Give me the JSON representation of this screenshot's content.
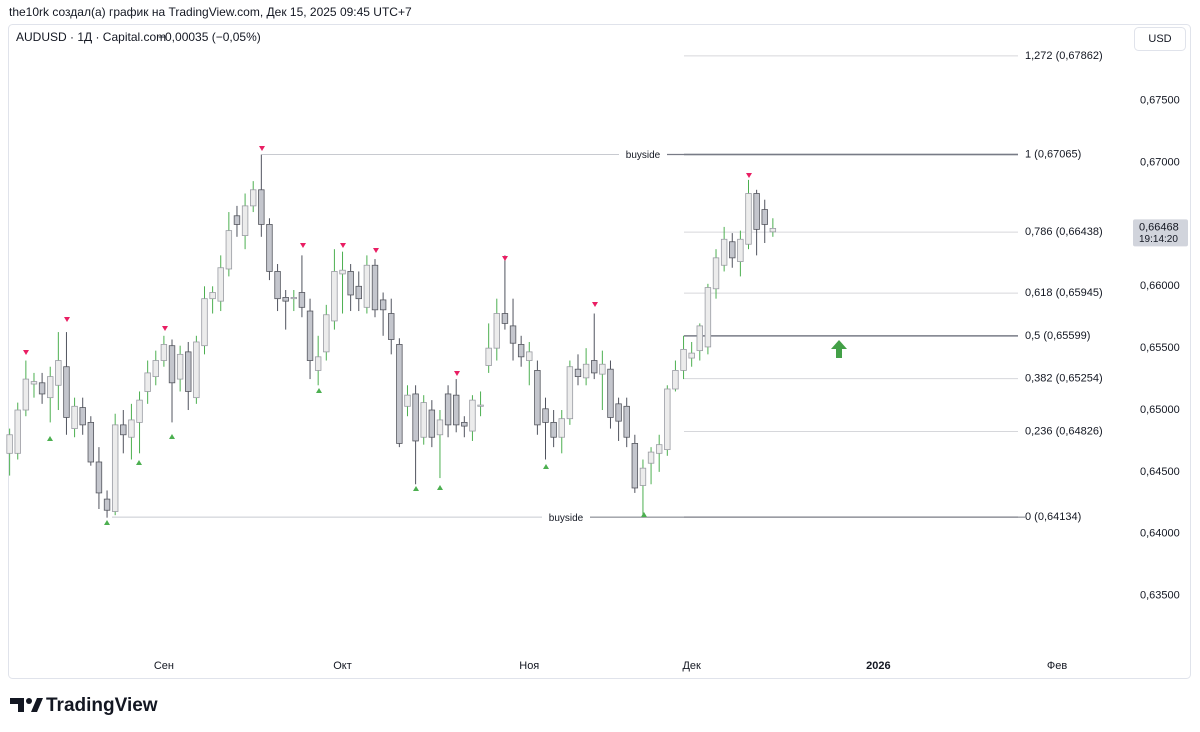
{
  "header": {
    "attribution": "the10rk создал(а) график на TradingView.com, Дек 15, 2025 09:45 UTC+7"
  },
  "footer": {
    "brand": "TradingView"
  },
  "chart_data": {
    "type": "candlestick",
    "title": "AUDUSD · 1Д · Capital.com",
    "change": "−0,00035 (−0,05%)",
    "currency": "USD",
    "last_price": {
      "value": 0.66468,
      "label": "0,66468"
    },
    "countdown": "19:14:20",
    "colors": {
      "up_body": "#ececec",
      "up_border": "#9a9ca3",
      "up_wick": "#4caf50",
      "down_body": "#c4c6cd",
      "down_border": "#55575f",
      "down_wick": "#50535e"
    },
    "x": [
      0,
      1,
      2,
      3,
      4,
      5,
      6,
      7,
      8,
      9,
      10,
      11,
      12,
      13,
      14,
      15,
      16,
      17,
      18,
      19,
      20,
      21,
      22,
      23,
      24,
      25,
      26,
      27,
      28,
      29,
      30,
      31,
      32,
      33,
      34,
      35,
      36,
      37,
      38,
      39,
      40,
      41,
      42,
      43,
      44,
      45,
      46,
      47,
      48,
      49,
      50,
      51,
      52,
      53,
      54,
      55,
      56,
      57,
      58,
      59,
      60,
      61,
      62,
      63,
      64,
      65,
      66,
      67,
      68,
      69,
      70,
      71,
      72,
      73,
      74,
      75,
      76,
      77,
      78,
      79,
      80,
      81,
      82,
      83,
      84,
      85,
      86,
      87,
      88,
      89,
      90,
      91,
      92,
      93,
      94
    ],
    "open": [
      0.6465,
      0.6465,
      0.65,
      0.6521,
      0.6522,
      0.651,
      0.652,
      0.6535,
      0.6485,
      0.6502,
      0.649,
      0.6458,
      0.6428,
      0.6418,
      0.6488,
      0.6478,
      0.649,
      0.6515,
      0.6527,
      0.654,
      0.6552,
      0.6525,
      0.6547,
      0.651,
      0.6552,
      0.659,
      0.6588,
      0.6614,
      0.6657,
      0.6641,
      0.6665,
      0.6678,
      0.665,
      0.6612,
      0.6591,
      0.659,
      0.6595,
      0.658,
      0.6532,
      0.6547,
      0.6572,
      0.661,
      0.6612,
      0.66,
      0.6583,
      0.6617,
      0.6589,
      0.6578,
      0.6553,
      0.6503,
      0.6513,
      0.6478,
      0.65,
      0.648,
      0.6513,
      0.6512,
      0.649,
      0.6483,
      0.6503,
      0.6536,
      0.655,
      0.6578,
      0.6568,
      0.6553,
      0.654,
      0.6532,
      0.6501,
      0.649,
      0.6478,
      0.6493,
      0.6533,
      0.6526,
      0.654,
      0.6529,
      0.6533,
      0.6505,
      0.6503,
      0.6473,
      0.6439,
      0.6457,
      0.6465,
      0.6468,
      0.6517,
      0.6532,
      0.6542,
      0.6548,
      0.6551,
      0.6598,
      0.6617,
      0.6636,
      0.662,
      0.6634,
      0.6675,
      0.6662,
      0.6644
    ],
    "high": [
      0.6485,
      0.6506,
      0.654,
      0.653,
      0.653,
      0.6535,
      0.6563,
      0.6563,
      0.651,
      0.651,
      0.6495,
      0.647,
      0.6435,
      0.6497,
      0.65,
      0.6505,
      0.6515,
      0.654,
      0.6548,
      0.656,
      0.6557,
      0.6552,
      0.6555,
      0.656,
      0.66,
      0.66,
      0.6625,
      0.666,
      0.6665,
      0.6675,
      0.6685,
      0.67065,
      0.6655,
      0.6618,
      0.6597,
      0.6597,
      0.6625,
      0.659,
      0.656,
      0.6585,
      0.663,
      0.6628,
      0.6618,
      0.6612,
      0.6625,
      0.6622,
      0.6595,
      0.659,
      0.6558,
      0.652,
      0.652,
      0.6512,
      0.6508,
      0.65,
      0.652,
      0.6525,
      0.6495,
      0.6512,
      0.6515,
      0.657,
      0.659,
      0.6625,
      0.659,
      0.656,
      0.6555,
      0.654,
      0.651,
      0.65,
      0.65,
      0.654,
      0.6545,
      0.655,
      0.6578,
      0.6548,
      0.654,
      0.651,
      0.651,
      0.648,
      0.646,
      0.647,
      0.648,
      0.652,
      0.654,
      0.656,
      0.6555,
      0.657,
      0.6602,
      0.663,
      0.6648,
      0.6643,
      0.6645,
      0.6686,
      0.6678,
      0.667,
      0.6655
    ],
    "low": [
      0.6447,
      0.646,
      0.6495,
      0.651,
      0.6505,
      0.649,
      0.65,
      0.648,
      0.6478,
      0.648,
      0.6455,
      0.642,
      0.6413,
      0.6415,
      0.6465,
      0.646,
      0.6465,
      0.6505,
      0.652,
      0.6535,
      0.649,
      0.6515,
      0.65,
      0.6505,
      0.6545,
      0.6578,
      0.658,
      0.6608,
      0.664,
      0.663,
      0.666,
      0.664,
      0.6605,
      0.658,
      0.6565,
      0.658,
      0.6575,
      0.6525,
      0.652,
      0.654,
      0.6565,
      0.6578,
      0.658,
      0.658,
      0.6578,
      0.6575,
      0.656,
      0.6545,
      0.647,
      0.6495,
      0.644,
      0.6472,
      0.647,
      0.6445,
      0.6478,
      0.6482,
      0.6478,
      0.6475,
      0.6495,
      0.653,
      0.654,
      0.6565,
      0.654,
      0.6535,
      0.652,
      0.648,
      0.646,
      0.647,
      0.6465,
      0.6488,
      0.652,
      0.652,
      0.6525,
      0.65,
      0.6485,
      0.6475,
      0.647,
      0.6433,
      0.64134,
      0.644,
      0.645,
      0.6463,
      0.6515,
      0.6525,
      0.6535,
      0.654,
      0.6545,
      0.659,
      0.6612,
      0.6615,
      0.6608,
      0.663,
      0.6625,
      0.6635,
      0.664
    ],
    "close": [
      0.648,
      0.65,
      0.6525,
      0.6523,
      0.6513,
      0.6527,
      0.654,
      0.6494,
      0.6503,
      0.6488,
      0.6458,
      0.6433,
      0.6419,
      0.6488,
      0.648,
      0.6492,
      0.6508,
      0.653,
      0.654,
      0.6553,
      0.6522,
      0.6545,
      0.6515,
      0.6555,
      0.659,
      0.6595,
      0.6615,
      0.6645,
      0.665,
      0.6665,
      0.6678,
      0.665,
      0.6612,
      0.659,
      0.6588,
      0.6591,
      0.6583,
      0.654,
      0.6543,
      0.6577,
      0.6612,
      0.6613,
      0.6593,
      0.659,
      0.6617,
      0.6581,
      0.6581,
      0.6557,
      0.6473,
      0.6512,
      0.6475,
      0.6506,
      0.6478,
      0.6492,
      0.6488,
      0.6488,
      0.6487,
      0.6508,
      0.6504,
      0.655,
      0.6578,
      0.657,
      0.6554,
      0.6543,
      0.6547,
      0.6488,
      0.649,
      0.6478,
      0.6493,
      0.6535,
      0.6527,
      0.6537,
      0.653,
      0.6537,
      0.6494,
      0.6491,
      0.6478,
      0.6437,
      0.6453,
      0.6466,
      0.6472,
      0.6517,
      0.6532,
      0.6549,
      0.6546,
      0.6568,
      0.6599,
      0.6623,
      0.6638,
      0.6623,
      0.6638,
      0.6675,
      0.6646,
      0.665,
      0.66468
    ],
    "xlim": [
      -0.2,
      137
    ],
    "xticks": [
      {
        "value": 19,
        "label": "Сен"
      },
      {
        "value": 41,
        "label": "Окт"
      },
      {
        "value": 64,
        "label": "Ноя"
      },
      {
        "value": 84,
        "label": "Дек"
      },
      {
        "value": 107,
        "label": "2026",
        "bold": true
      },
      {
        "value": 129,
        "label": "Фев"
      }
    ],
    "ylim": [
      0.6302,
      0.6812
    ],
    "yticks": [
      {
        "value": 0.635,
        "label": "0,63500"
      },
      {
        "value": 0.64,
        "label": "0,64000"
      },
      {
        "value": 0.645,
        "label": "0,64500"
      },
      {
        "value": 0.65,
        "label": "0,65000"
      },
      {
        "value": 0.655,
        "label": "0,65500"
      },
      {
        "value": 0.66,
        "label": "0,66000"
      },
      {
        "value": 0.665,
        "label": "0,66500"
      },
      {
        "value": 0.67,
        "label": "0,67000"
      },
      {
        "value": 0.675,
        "label": "0,67500"
      }
    ],
    "fib_levels": [
      {
        "value": 0.67862,
        "label": "1,272 (0,67862)",
        "color": "#d6d7db"
      },
      {
        "value": 0.67065,
        "label": "1 (0,67065)",
        "color": "#787b86"
      },
      {
        "value": 0.66438,
        "label": "0,786 (0,66438)",
        "color": "#d6d7db"
      },
      {
        "value": 0.65945,
        "label": "0,618 (0,65945)",
        "color": "#d6d7db"
      },
      {
        "value": 0.65599,
        "label": "0,5 (0,65599)",
        "color": "#787b86"
      },
      {
        "value": 0.65254,
        "label": "0,382 (0,65254)",
        "color": "#d6d7db"
      },
      {
        "value": 0.64826,
        "label": "0,236 (0,64826)",
        "color": "#d6d7db"
      },
      {
        "value": 0.64134,
        "label": "0 (0,64134)",
        "color": "#787b86"
      }
    ],
    "liquidity_lines": [
      {
        "label": "buyside",
        "value": 0.67065
      },
      {
        "label": "buyside",
        "value": 0.64134
      }
    ]
  }
}
